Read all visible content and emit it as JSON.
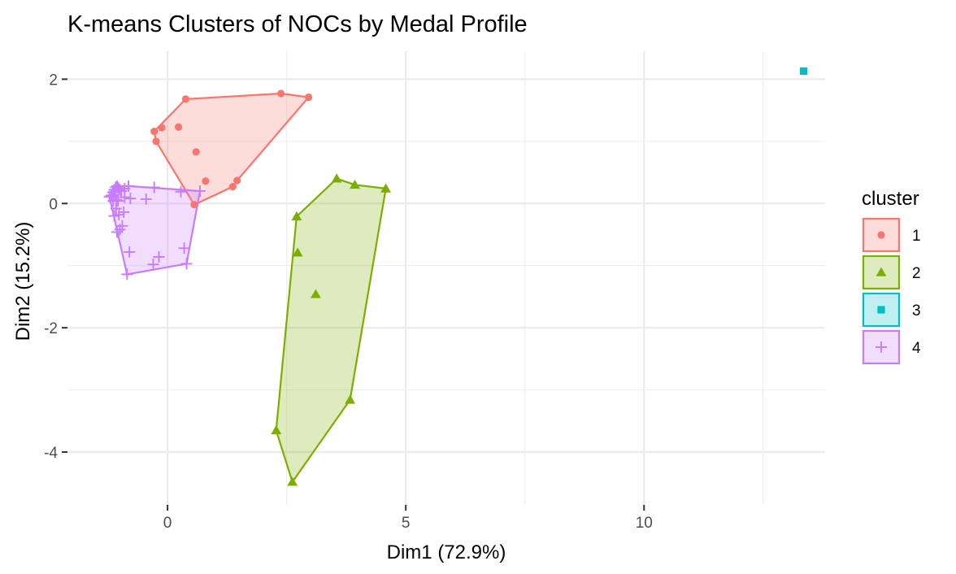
{
  "chart_data": {
    "type": "scatter",
    "title": "K-means Clusters of NOCs by Medal Profile",
    "xlabel": "Dim1 (72.9%)",
    "ylabel": "Dim2 (15.2%)",
    "xlim": [
      -2.1,
      13.8
    ],
    "ylim": [
      -4.85,
      2.45
    ],
    "x_ticks": [
      0,
      5,
      10
    ],
    "x_tick_labels": [
      "0",
      "5",
      "10"
    ],
    "y_ticks": [
      2,
      0,
      -2,
      -4
    ],
    "y_tick_labels": [
      "2",
      "0",
      "-2",
      "-4"
    ],
    "grid": true,
    "background": "#ffffff",
    "legend": {
      "title": "cluster",
      "position": "right"
    },
    "series": [
      {
        "name": "1",
        "shape": "circle",
        "color": "#f8766d",
        "points": [
          [
            -0.28,
            1.16
          ],
          [
            -0.12,
            1.22
          ],
          [
            0.23,
            1.23
          ],
          [
            0.38,
            1.68
          ],
          [
            2.38,
            1.77
          ],
          [
            2.96,
            1.71
          ],
          [
            -0.24,
            1.0
          ],
          [
            0.6,
            0.83
          ],
          [
            0.8,
            0.36
          ],
          [
            1.46,
            0.37
          ],
          [
            1.37,
            0.27
          ],
          [
            0.56,
            -0.02
          ]
        ],
        "hull": [
          [
            -0.28,
            1.16
          ],
          [
            0.38,
            1.68
          ],
          [
            2.38,
            1.77
          ],
          [
            2.96,
            1.71
          ],
          [
            1.46,
            0.37
          ],
          [
            1.37,
            0.27
          ],
          [
            0.56,
            -0.02
          ],
          [
            -0.24,
            1.0
          ]
        ]
      },
      {
        "name": "2",
        "shape": "triangle",
        "color": "#7cae00",
        "points": [
          [
            3.55,
            0.4
          ],
          [
            3.93,
            0.3
          ],
          [
            4.58,
            0.24
          ],
          [
            2.71,
            -0.21
          ],
          [
            2.73,
            -0.79
          ],
          [
            3.11,
            -1.46
          ],
          [
            3.83,
            -3.16
          ],
          [
            2.28,
            -3.65
          ],
          [
            2.62,
            -4.48
          ]
        ],
        "hull": [
          [
            2.71,
            -0.21
          ],
          [
            3.55,
            0.4
          ],
          [
            3.93,
            0.3
          ],
          [
            4.58,
            0.24
          ],
          [
            3.83,
            -3.16
          ],
          [
            2.62,
            -4.48
          ],
          [
            2.28,
            -3.65
          ]
        ]
      },
      {
        "name": "3",
        "shape": "square",
        "color": "#00bfc4",
        "points": [
          [
            13.35,
            2.13
          ]
        ],
        "hull": []
      },
      {
        "name": "4",
        "shape": "cross",
        "color": "#c77cff",
        "points": [
          [
            -1.22,
            0.11
          ],
          [
            -1.18,
            0.13
          ],
          [
            -1.15,
            0.18
          ],
          [
            -1.12,
            0.22
          ],
          [
            -1.09,
            0.26
          ],
          [
            -1.06,
            0.28
          ],
          [
            -1.03,
            0.25
          ],
          [
            -1.0,
            0.22
          ],
          [
            -1.1,
            0.14
          ],
          [
            -1.07,
            0.06
          ],
          [
            -1.14,
            0.04
          ],
          [
            -1.04,
            0.04
          ],
          [
            -0.97,
            0.2
          ],
          [
            -0.9,
            0.24
          ],
          [
            -0.82,
            0.28
          ],
          [
            -0.9,
            0.1
          ],
          [
            -0.78,
            0.08
          ],
          [
            -0.45,
            0.07
          ],
          [
            -0.28,
            0.26
          ],
          [
            0.28,
            0.19
          ],
          [
            0.68,
            0.2
          ],
          [
            -1.08,
            -0.08
          ],
          [
            -1.12,
            -0.2
          ],
          [
            -1.02,
            -0.18
          ],
          [
            -0.92,
            -0.14
          ],
          [
            -0.95,
            -0.36
          ],
          [
            -1.0,
            -0.42
          ],
          [
            -1.06,
            -0.46
          ],
          [
            -0.8,
            -0.78
          ],
          [
            -0.18,
            -0.86
          ],
          [
            -0.3,
            -0.98
          ],
          [
            0.35,
            -0.72
          ],
          [
            0.4,
            -0.97
          ],
          [
            -0.85,
            -1.14
          ]
        ],
        "hull": [
          [
            -1.22,
            0.11
          ],
          [
            -1.06,
            0.28
          ],
          [
            -0.82,
            0.28
          ],
          [
            0.68,
            0.2
          ],
          [
            0.4,
            -0.97
          ],
          [
            -0.85,
            -1.14
          ]
        ]
      }
    ]
  }
}
